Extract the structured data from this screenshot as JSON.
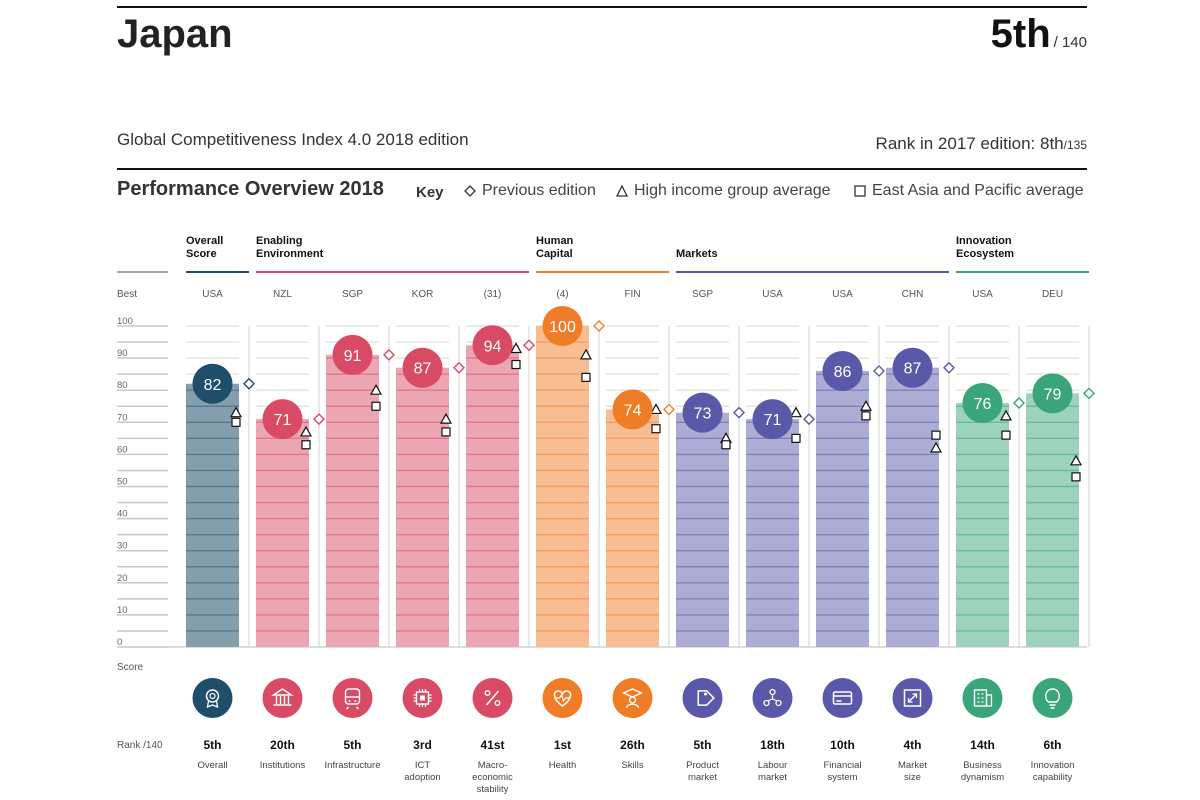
{
  "header": {
    "country": "Japan",
    "rank": "5th",
    "rank_of": "/ 140",
    "subtitle": "Global Competitiveness Index 4.0 2018 edition",
    "prev_rank_label": "Rank in 2017 edition: 8th",
    "prev_rank_of": "/135"
  },
  "overview": {
    "title": "Performance Overview 2018",
    "key_label": "Key",
    "key_items": [
      "Previous edition",
      "High income group average",
      "East Asia and Pacific average"
    ]
  },
  "axis": {
    "best_label": "Best",
    "score_label": "Score",
    "rank_label": "Rank /140",
    "ticks": [
      "0",
      "10",
      "20",
      "30",
      "40",
      "50",
      "60",
      "70",
      "80",
      "90",
      "100"
    ]
  },
  "groups": [
    {
      "name_lines": [
        "Overall",
        "Score"
      ],
      "color": "#1f4e6b"
    },
    {
      "name_lines": [
        "Enabling",
        "Environment"
      ],
      "color": "#d94a64"
    },
    {
      "name_lines": [
        "Human",
        "Capital"
      ],
      "color": "#ef7d28"
    },
    {
      "name_lines": [
        "Markets"
      ],
      "color": "#5a58a8"
    },
    {
      "name_lines": [
        "Innovation",
        "Ecosystem"
      ],
      "color": "#3aa57a"
    }
  ],
  "chart_data": {
    "type": "bar",
    "title": "Performance Overview 2018",
    "ylabel": "Score",
    "ylim": [
      0,
      100
    ],
    "categories": [
      "Overall",
      "Institutions",
      "Infrastructure",
      "ICT adoption",
      "Macro-economic stability",
      "Health",
      "Skills",
      "Product market",
      "Labour market",
      "Financial system",
      "Market size",
      "Business dynamism",
      "Innovation capability"
    ],
    "label_lines": [
      [
        "Overall"
      ],
      [
        "Institutions"
      ],
      [
        "Infrastructure"
      ],
      [
        "ICT",
        "adoption"
      ],
      [
        "Macro-",
        "economic",
        "stability"
      ],
      [
        "Health"
      ],
      [
        "Skills"
      ],
      [
        "Product",
        "market"
      ],
      [
        "Labour",
        "market"
      ],
      [
        "Financial",
        "system"
      ],
      [
        "Market",
        "size"
      ],
      [
        "Business",
        "dynamism"
      ],
      [
        "Innovation",
        "capability"
      ]
    ],
    "group_index": [
      0,
      1,
      1,
      1,
      1,
      2,
      2,
      3,
      3,
      3,
      3,
      4,
      4
    ],
    "values": [
      82,
      71,
      91,
      87,
      94,
      100,
      74,
      73,
      71,
      86,
      87,
      76,
      79
    ],
    "ranks": [
      "5th",
      "20th",
      "5th",
      "3rd",
      "41st",
      "1st",
      "26th",
      "5th",
      "18th",
      "10th",
      "4th",
      "14th",
      "6th"
    ],
    "best": [
      "USA",
      "NZL",
      "SGP",
      "KOR",
      "(31)",
      "(4)",
      "FIN",
      "SGP",
      "USA",
      "USA",
      "CHN",
      "USA",
      "DEU"
    ],
    "previous_edition": [
      82,
      71,
      91,
      87,
      94,
      100,
      74,
      73,
      71,
      86,
      87,
      76,
      79
    ],
    "high_income_avg": [
      73,
      67,
      80,
      71,
      93,
      91,
      74,
      65,
      73,
      75,
      62,
      72,
      58
    ],
    "east_asia_pacific_avg": [
      70,
      63,
      75,
      67,
      88,
      84,
      68,
      63,
      65,
      72,
      66,
      66,
      53
    ],
    "icons": [
      "medal-icon",
      "institution-icon",
      "train-icon",
      "chip-icon",
      "percent-icon",
      "heart-icon",
      "graduate-icon",
      "tag-icon",
      "people-icon",
      "card-icon",
      "expand-icon",
      "building-icon",
      "bulb-icon"
    ]
  }
}
